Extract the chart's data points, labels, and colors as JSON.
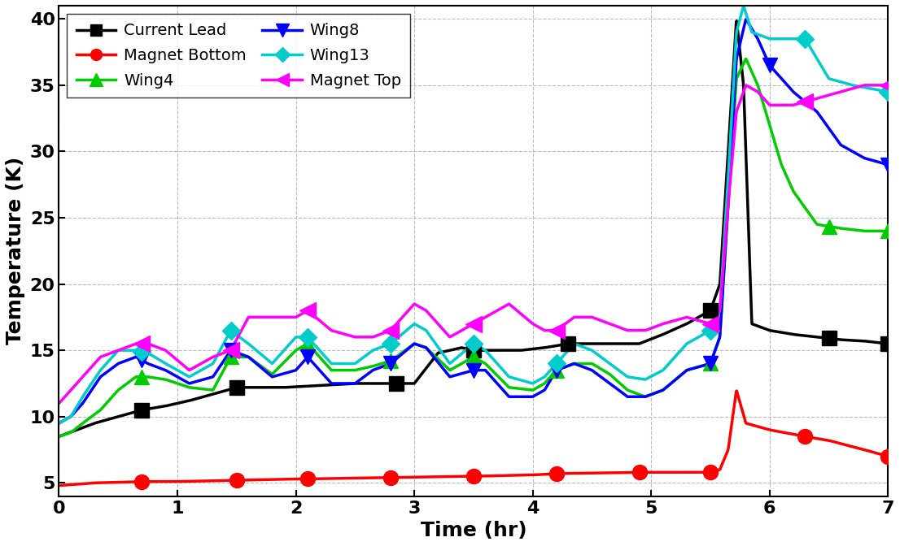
{
  "title": "",
  "xlabel": "Time (hr)",
  "ylabel": "Temperature (K)",
  "xlim": [
    0,
    7
  ],
  "ylim": [
    4,
    41
  ],
  "yticks": [
    5,
    10,
    15,
    20,
    25,
    30,
    35,
    40
  ],
  "xticks": [
    0,
    1,
    2,
    3,
    4,
    5,
    6,
    7
  ],
  "series": {
    "Current Lead": {
      "color": "#000000",
      "marker": "s",
      "markersize": 13,
      "linewidth": 2.5,
      "x": [
        0,
        0.15,
        0.3,
        0.5,
        0.7,
        0.9,
        1.1,
        1.3,
        1.5,
        1.7,
        1.9,
        2.1,
        2.3,
        2.5,
        2.7,
        2.85,
        3.0,
        3.2,
        3.4,
        3.5,
        3.7,
        3.9,
        4.1,
        4.3,
        4.5,
        4.7,
        4.9,
        5.1,
        5.3,
        5.5,
        5.58,
        5.65,
        5.72,
        5.78,
        5.85,
        6.0,
        6.2,
        6.4,
        6.6,
        6.8,
        7.0
      ],
      "y": [
        8.5,
        9.0,
        9.5,
        10.0,
        10.5,
        10.8,
        11.2,
        11.7,
        12.2,
        12.2,
        12.2,
        12.3,
        12.4,
        12.5,
        12.5,
        12.5,
        12.5,
        14.8,
        15.2,
        15.0,
        15.0,
        15.0,
        15.2,
        15.5,
        15.5,
        15.5,
        15.5,
        16.2,
        17.0,
        18.0,
        20.0,
        30.0,
        40.0,
        35.0,
        17.0,
        16.5,
        16.2,
        16.0,
        15.8,
        15.7,
        15.5
      ],
      "marker_x": [
        0.7,
        1.5,
        2.85,
        3.5,
        4.3,
        5.5,
        6.5,
        7.0
      ]
    },
    "Magnet Bottom": {
      "color": "#ff0000",
      "marker": "o",
      "markersize": 13,
      "linewidth": 2.5,
      "x": [
        0,
        0.3,
        0.7,
        1.0,
        1.5,
        2.0,
        2.1,
        2.8,
        3.5,
        4.0,
        4.2,
        4.9,
        5.0,
        5.5,
        5.58,
        5.65,
        5.72,
        5.8,
        6.0,
        6.3,
        6.5,
        6.8,
        7.0
      ],
      "y": [
        4.8,
        5.0,
        5.1,
        5.1,
        5.2,
        5.3,
        5.3,
        5.4,
        5.5,
        5.6,
        5.7,
        5.8,
        5.8,
        5.8,
        6.0,
        7.5,
        12.0,
        9.5,
        9.0,
        8.5,
        8.2,
        7.5,
        7.0
      ],
      "marker_x": [
        0.7,
        1.5,
        2.1,
        2.8,
        3.5,
        4.2,
        4.9,
        5.5,
        6.3,
        7.0
      ]
    },
    "Wing4": {
      "color": "#00cc00",
      "marker": "^",
      "markersize": 13,
      "linewidth": 2.5,
      "x": [
        0,
        0.1,
        0.2,
        0.35,
        0.5,
        0.65,
        0.75,
        0.9,
        1.1,
        1.3,
        1.45,
        1.6,
        1.8,
        2.0,
        2.1,
        2.3,
        2.5,
        2.65,
        2.8,
        3.0,
        3.1,
        3.3,
        3.5,
        3.6,
        3.8,
        4.0,
        4.1,
        4.2,
        4.35,
        4.5,
        4.65,
        4.8,
        4.95,
        5.1,
        5.3,
        5.5,
        5.58,
        5.65,
        5.72,
        5.8,
        5.9,
        6.0,
        6.1,
        6.2,
        6.4,
        6.6,
        6.8,
        7.0
      ],
      "y": [
        8.5,
        8.8,
        9.5,
        10.5,
        12.0,
        13.0,
        13.0,
        12.8,
        12.2,
        12.0,
        14.5,
        14.5,
        13.2,
        15.0,
        15.5,
        13.5,
        13.5,
        13.8,
        14.2,
        15.5,
        15.2,
        13.5,
        14.5,
        14.0,
        12.2,
        12.0,
        12.5,
        13.5,
        14.0,
        14.0,
        13.2,
        12.0,
        11.5,
        12.0,
        13.5,
        14.0,
        16.0,
        26.0,
        35.5,
        37.0,
        35.0,
        32.0,
        29.0,
        27.0,
        24.5,
        24.2,
        24.0,
        24.0
      ],
      "marker_x": [
        0.7,
        1.45,
        2.1,
        2.8,
        3.5,
        4.2,
        5.5,
        6.5,
        7.0
      ]
    },
    "Wing8": {
      "color": "#0000ff",
      "marker": "v",
      "markersize": 13,
      "linewidth": 2.5,
      "x": [
        0,
        0.1,
        0.2,
        0.35,
        0.5,
        0.65,
        0.75,
        0.9,
        1.1,
        1.3,
        1.45,
        1.6,
        1.8,
        2.0,
        2.1,
        2.3,
        2.5,
        2.65,
        2.8,
        3.0,
        3.1,
        3.3,
        3.5,
        3.6,
        3.8,
        4.0,
        4.1,
        4.2,
        4.35,
        4.5,
        4.65,
        4.8,
        4.95,
        5.1,
        5.3,
        5.5,
        5.58,
        5.65,
        5.72,
        5.8,
        5.9,
        6.0,
        6.1,
        6.2,
        6.4,
        6.6,
        6.8,
        7.0
      ],
      "y": [
        9.5,
        10.0,
        11.0,
        13.0,
        14.0,
        14.5,
        14.0,
        13.5,
        12.5,
        13.0,
        15.0,
        14.5,
        13.0,
        13.5,
        14.5,
        12.5,
        12.5,
        13.5,
        14.0,
        15.5,
        15.2,
        13.0,
        13.5,
        13.5,
        11.5,
        11.5,
        12.0,
        13.5,
        14.0,
        13.5,
        12.5,
        11.5,
        11.5,
        12.0,
        13.5,
        14.0,
        16.0,
        26.0,
        37.0,
        40.0,
        38.5,
        36.5,
        35.5,
        34.5,
        33.0,
        30.5,
        29.5,
        29.0
      ],
      "marker_x": [
        0.7,
        1.45,
        2.1,
        2.8,
        3.5,
        4.2,
        5.5,
        6.0,
        7.0
      ]
    },
    "Wing13": {
      "color": "#00cccc",
      "marker": "D",
      "markersize": 11,
      "linewidth": 2.5,
      "x": [
        0,
        0.1,
        0.2,
        0.35,
        0.5,
        0.65,
        0.75,
        0.9,
        1.1,
        1.3,
        1.45,
        1.6,
        1.8,
        2.0,
        2.1,
        2.3,
        2.5,
        2.65,
        2.8,
        3.0,
        3.1,
        3.3,
        3.5,
        3.6,
        3.8,
        4.0,
        4.1,
        4.2,
        4.35,
        4.5,
        4.65,
        4.8,
        4.95,
        5.1,
        5.3,
        5.5,
        5.58,
        5.65,
        5.72,
        5.78,
        5.85,
        6.0,
        6.15,
        6.3,
        6.5,
        6.7,
        7.0
      ],
      "y": [
        9.5,
        10.0,
        11.5,
        13.5,
        15.0,
        15.0,
        14.8,
        14.0,
        13.0,
        14.0,
        16.5,
        15.5,
        14.0,
        16.0,
        16.0,
        14.0,
        14.0,
        15.0,
        15.5,
        17.0,
        16.5,
        14.0,
        15.5,
        15.0,
        13.0,
        12.5,
        13.0,
        14.0,
        15.5,
        15.0,
        14.0,
        13.0,
        12.8,
        13.5,
        15.5,
        16.5,
        18.0,
        28.0,
        39.0,
        41.0,
        39.0,
        38.5,
        38.5,
        38.5,
        35.5,
        35.0,
        34.5
      ],
      "marker_x": [
        0.7,
        1.45,
        2.1,
        2.8,
        3.5,
        4.2,
        5.5,
        6.3,
        7.0
      ]
    },
    "Magnet Top": {
      "color": "#ff00ff",
      "marker": "<",
      "markersize": 14,
      "linewidth": 2.5,
      "x": [
        0,
        0.1,
        0.2,
        0.35,
        0.5,
        0.65,
        0.75,
        0.9,
        1.1,
        1.3,
        1.45,
        1.6,
        1.8,
        2.0,
        2.1,
        2.3,
        2.5,
        2.65,
        2.8,
        3.0,
        3.1,
        3.3,
        3.5,
        3.6,
        3.8,
        4.0,
        4.1,
        4.2,
        4.35,
        4.5,
        4.65,
        4.8,
        4.95,
        5.1,
        5.3,
        5.5,
        5.58,
        5.65,
        5.72,
        5.8,
        5.9,
        6.0,
        6.1,
        6.2,
        6.4,
        6.6,
        6.8,
        7.0
      ],
      "y": [
        11.0,
        12.0,
        13.0,
        14.5,
        15.0,
        15.5,
        15.5,
        15.0,
        13.5,
        14.5,
        15.0,
        17.5,
        17.5,
        17.5,
        18.0,
        16.5,
        16.0,
        16.0,
        16.5,
        18.5,
        18.0,
        16.0,
        17.0,
        17.5,
        18.5,
        17.0,
        16.5,
        16.5,
        17.5,
        17.5,
        17.0,
        16.5,
        16.5,
        17.0,
        17.5,
        17.0,
        18.0,
        26.0,
        33.0,
        35.0,
        34.5,
        33.5,
        33.5,
        33.5,
        34.0,
        34.5,
        35.0,
        35.0
      ],
      "marker_x": [
        0.7,
        1.45,
        2.1,
        2.8,
        3.5,
        4.2,
        5.5,
        6.3,
        7.0
      ]
    }
  },
  "legend_entries": [
    [
      "Current Lead",
      "#000000",
      "s",
      10
    ],
    [
      "Magnet Bottom",
      "#ff0000",
      "o",
      10
    ],
    [
      "Wing4",
      "#00cc00",
      "^",
      11
    ],
    [
      "Wing8",
      "#0000ff",
      "v",
      11
    ],
    [
      "Wing13",
      "#00cccc",
      "D",
      9
    ],
    [
      "Magnet Top",
      "#ff00ff",
      "<",
      12
    ]
  ],
  "background_color": "#ffffff",
  "grid_color": "#bbbbbb",
  "legend_fontsize": 14,
  "axis_fontsize": 18,
  "tick_fontsize": 16
}
